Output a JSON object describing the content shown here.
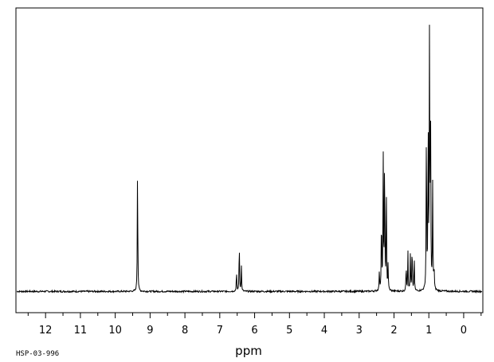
{
  "chart_data": {
    "type": "line",
    "xlabel": "ppm",
    "x_reversed": true,
    "xlim": [
      12.85,
      -0.55
    ],
    "ylim": [
      -0.075,
      1.0
    ],
    "grid": false,
    "major_ticks": [
      12,
      11,
      10,
      9,
      8,
      7,
      6,
      5,
      4,
      3,
      2,
      1,
      0
    ],
    "tick_labels": [
      "12",
      "11",
      "10",
      "9",
      "8",
      "7",
      "6",
      "5",
      "4",
      "3",
      "2",
      "1",
      "0"
    ],
    "series": [
      {
        "peaks": [
          {
            "ppm": 9.36,
            "height": 0.44
          },
          {
            "ppm": 6.52,
            "height": 0.07
          },
          {
            "ppm": 6.44,
            "height": 0.17
          },
          {
            "ppm": 6.38,
            "height": 0.09
          },
          {
            "ppm": 2.42,
            "height": 0.065
          },
          {
            "ppm": 2.36,
            "height": 0.27
          },
          {
            "ppm": 2.31,
            "height": 0.48
          },
          {
            "ppm": 2.27,
            "height": 0.48
          },
          {
            "ppm": 2.22,
            "height": 0.36
          },
          {
            "ppm": 2.17,
            "height": 0.09
          },
          {
            "ppm": 1.65,
            "height": 0.095
          },
          {
            "ppm": 1.6,
            "height": 0.14
          },
          {
            "ppm": 1.53,
            "height": 0.13
          },
          {
            "ppm": 1.48,
            "height": 0.16
          },
          {
            "ppm": 1.42,
            "height": 0.12
          },
          {
            "ppm": 1.07,
            "height": 0.58
          },
          {
            "ppm": 1.02,
            "height": 0.6
          },
          {
            "ppm": 0.98,
            "height": 0.93
          },
          {
            "ppm": 0.95,
            "height": 0.57
          },
          {
            "ppm": 0.89,
            "height": 0.37
          },
          {
            "ppm": 0.85,
            "height": 0.08
          }
        ]
      }
    ]
  },
  "footer": {
    "code": "HSP-03-996"
  }
}
